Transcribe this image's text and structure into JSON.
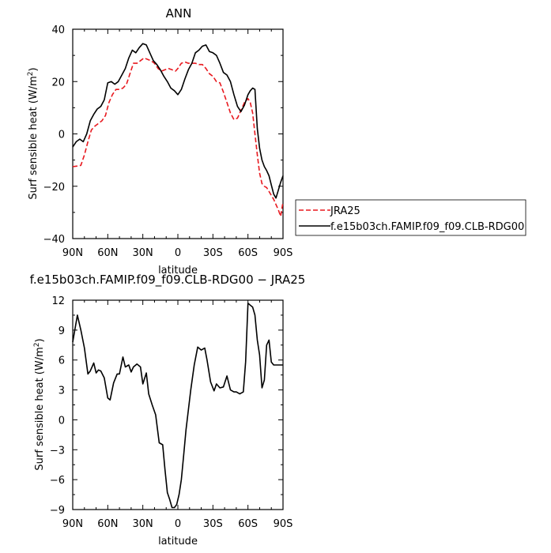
{
  "chart_data": [
    {
      "type": "line",
      "title": "ANN",
      "xlabel": "latitude",
      "ylabel": "Surf sensible heat (W/m²)",
      "ylabel_main": "Surf sensible heat (W/m",
      "ylabel_sup": "2",
      "ylabel_tail": ")",
      "xlim": [
        90,
        -90
      ],
      "ylim": [
        -40,
        40
      ],
      "x_ticks": [
        90,
        60,
        30,
        0,
        -30,
        -60,
        -90
      ],
      "x_tick_labels": [
        "90N",
        "60N",
        "30N",
        "0",
        "30S",
        "60S",
        "90S"
      ],
      "y_ticks": [
        -40,
        -20,
        0,
        20,
        40
      ],
      "y_tick_labels": [
        "−40",
        "−20",
        "0",
        "20",
        "40"
      ],
      "legend_position": "right",
      "series": [
        {
          "name": "JRA25",
          "color": "#e8191f",
          "dash": "dashed",
          "x": [
            90,
            86,
            83,
            80,
            77,
            74,
            71,
            68,
            65,
            62,
            59,
            56,
            53,
            50,
            47,
            44,
            41,
            38,
            35,
            32,
            29,
            26,
            23,
            20,
            17,
            14,
            11,
            8,
            5,
            2,
            0,
            -3,
            -6,
            -9,
            -12,
            -15,
            -18,
            -21,
            -24,
            -27,
            -30,
            -33,
            -36,
            -39,
            -42,
            -45,
            -48,
            -51,
            -54,
            -57,
            -60,
            -62,
            -64,
            -66,
            -68,
            -70,
            -72,
            -74,
            -76,
            -78,
            -80,
            -82,
            -84,
            -86,
            -88,
            -90
          ],
          "y": [
            -12.5,
            -12.3,
            -12,
            -8,
            -3,
            1.5,
            3,
            4,
            5,
            7,
            12,
            15,
            17,
            17,
            17.5,
            19,
            23,
            27,
            27,
            28,
            29,
            28.5,
            28,
            27,
            25,
            24,
            24.5,
            25,
            24.5,
            24,
            25,
            27,
            27.5,
            27,
            27,
            27,
            26.5,
            26.5,
            25,
            23,
            22,
            20,
            19.5,
            16,
            12,
            8,
            5.5,
            6,
            9,
            12,
            13.5,
            12,
            8,
            0,
            -8,
            -15,
            -19,
            -20,
            -20.5,
            -22,
            -23.5,
            -25,
            -27,
            -29,
            -31.5,
            -26
          ]
        },
        {
          "name": "f.e15b03ch.FAMIP.f09_f09.CLB-RDG00",
          "color": "#000000",
          "dash": "solid",
          "x": [
            90,
            87,
            84,
            81,
            78,
            75,
            72,
            69,
            66,
            63,
            60,
            57,
            54,
            51,
            48,
            45,
            42,
            39,
            36,
            33,
            30,
            27,
            24,
            21,
            18,
            15,
            12,
            9,
            6,
            3,
            0,
            -3,
            -6,
            -9,
            -12,
            -15,
            -18,
            -21,
            -24,
            -27,
            -30,
            -33,
            -36,
            -39,
            -42,
            -45,
            -48,
            -51,
            -54,
            -57,
            -60,
            -62,
            -64,
            -66,
            -68,
            -70,
            -72,
            -74,
            -76,
            -78,
            -80,
            -82,
            -84,
            -86,
            -88,
            -90
          ],
          "y": [
            -5,
            -3,
            -2,
            -3,
            0,
            5,
            7.5,
            9.5,
            10.5,
            13,
            19.5,
            20,
            19,
            20,
            22.5,
            25,
            29,
            32,
            31,
            33,
            34.5,
            34,
            31,
            28,
            26.5,
            24.5,
            22,
            20,
            17.5,
            16.5,
            15,
            17,
            21,
            24.5,
            27,
            31,
            32,
            33.5,
            34,
            31.5,
            31,
            30,
            27,
            23.5,
            22.5,
            20,
            15,
            10.5,
            8.5,
            11,
            15,
            16.5,
            17.5,
            17,
            2,
            -5.5,
            -10,
            -12.5,
            -14,
            -16,
            -19.5,
            -23,
            -24.5,
            -21.5,
            -18.5,
            -16
          ]
        }
      ]
    },
    {
      "type": "line",
      "title": "f.e15b03ch.FAMIP.f09_f09.CLB-RDG00  −  JRA25",
      "xlabel": "latitude",
      "ylabel": "Surf sensible heat (W/m²)",
      "ylabel_main": "Surf sensible heat (W/m",
      "ylabel_sup": "2",
      "ylabel_tail": ")",
      "xlim": [
        90,
        -90
      ],
      "ylim": [
        -9,
        12
      ],
      "x_ticks": [
        90,
        60,
        30,
        0,
        -30,
        -60,
        -90
      ],
      "x_tick_labels": [
        "90N",
        "60N",
        "30N",
        "0",
        "30S",
        "60S",
        "90S"
      ],
      "y_ticks": [
        -9,
        -6,
        -3,
        0,
        3,
        6,
        9,
        12
      ],
      "y_tick_labels": [
        "−9",
        "−6",
        "−3",
        "0",
        "3",
        "6",
        "9",
        "12"
      ],
      "series": [
        {
          "color": "#000000",
          "dash": "solid",
          "x": [
            90,
            86,
            83,
            80,
            77,
            75,
            72,
            70,
            68,
            66,
            63,
            60,
            58,
            55,
            52,
            50,
            47,
            45,
            42,
            40,
            38,
            35,
            32,
            30,
            27,
            25,
            22,
            19,
            16,
            13,
            11,
            9,
            7,
            5,
            3,
            1,
            -1,
            -3,
            -5,
            -7,
            -9,
            -11,
            -14,
            -17,
            -20,
            -23,
            -25,
            -28,
            -31,
            -33,
            -36,
            -39,
            -42,
            -45,
            -48,
            -50,
            -53,
            -56,
            -58,
            -60,
            -62,
            -64,
            -66,
            -68,
            -70,
            -72,
            -74,
            -76,
            -78,
            -80,
            -82,
            -84,
            -86,
            -88,
            -90
          ],
          "y": [
            7.8,
            10.5,
            9,
            7.2,
            4.6,
            4.9,
            5.7,
            4.7,
            5,
            4.9,
            4.2,
            2.2,
            2,
            3.7,
            4.6,
            4.6,
            6.3,
            5.3,
            5.5,
            4.8,
            5.3,
            5.6,
            5.3,
            3.6,
            4.7,
            2.6,
            1.5,
            0.5,
            -2.3,
            -2.5,
            -5,
            -7.3,
            -8,
            -8.8,
            -8.8,
            -8.5,
            -7.5,
            -6,
            -3.5,
            -1,
            1,
            3,
            5.5,
            7.3,
            7,
            7.2,
            6,
            3.8,
            2.9,
            3.6,
            3.2,
            3.3,
            4.4,
            3,
            2.8,
            2.8,
            2.6,
            2.8,
            5.8,
            11.7,
            11.5,
            11.3,
            10.5,
            8,
            6.5,
            3.2,
            4,
            7.5,
            8,
            5.8,
            5.5,
            5.5,
            5.5,
            5.5,
            5.5
          ]
        }
      ]
    }
  ]
}
